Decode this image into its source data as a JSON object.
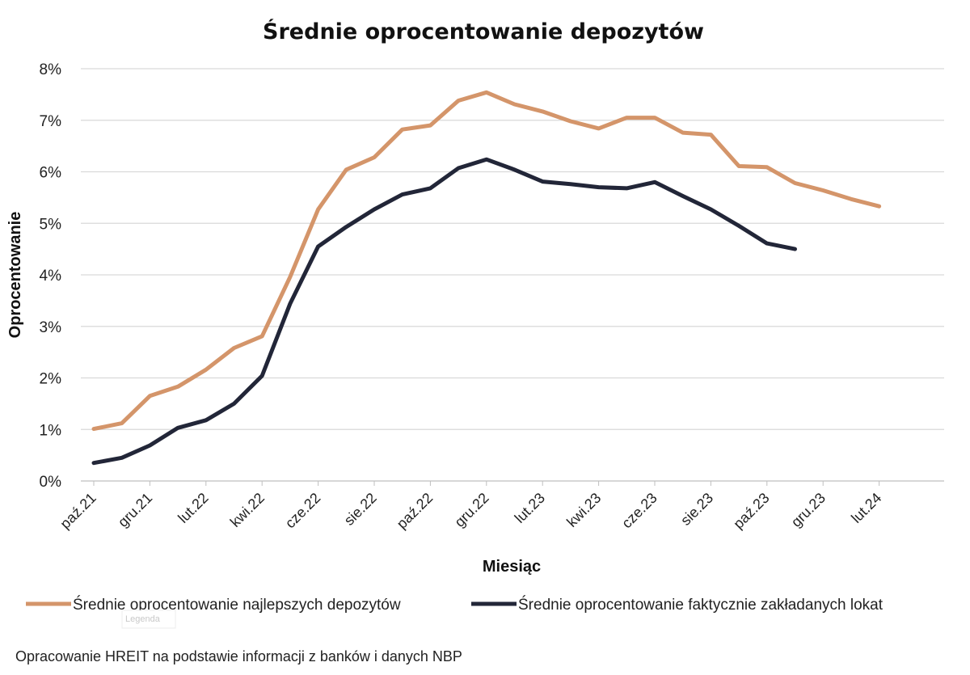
{
  "chart_data": {
    "type": "line",
    "title": "Średnie oprocentowanie depozytów",
    "xlabel": "Miesiąc",
    "ylabel": "Oprocentowanie",
    "ylim": [
      0,
      8
    ],
    "y_ticks": [
      "0%",
      "1%",
      "2%",
      "3%",
      "4%",
      "5%",
      "6%",
      "7%",
      "8%"
    ],
    "x_tick_labels": [
      "paź.21",
      "gru.21",
      "lut.22",
      "kwi.22",
      "cze.22",
      "sie.22",
      "paź.22",
      "gru.22",
      "lut.23",
      "kwi.23",
      "cze.23",
      "sie.23",
      "paź.23",
      "gru.23",
      "lut.24"
    ],
    "x": [
      "paź.21",
      "lis.21",
      "gru.21",
      "sty.22",
      "lut.22",
      "mar.22",
      "kwi.22",
      "maj.22",
      "cze.22",
      "lip.22",
      "sie.22",
      "wrz.22",
      "paź.22",
      "lis.22",
      "gru.22",
      "sty.23",
      "lut.23",
      "mar.23",
      "kwi.23",
      "maj.23",
      "cze.23",
      "lip.23",
      "sie.23",
      "wrz.23",
      "paź.23",
      "lis.23",
      "gru.23",
      "sty.24",
      "lut.24"
    ],
    "grid": true,
    "legend_position": "bottom",
    "series": [
      {
        "name": "Średnie oprocentowanie najlepszych depozytów",
        "color": "#D4956A",
        "values": [
          1.01,
          1.12,
          1.65,
          1.83,
          2.16,
          2.58,
          2.81,
          3.96,
          5.27,
          6.04,
          6.28,
          6.82,
          6.9,
          7.38,
          7.54,
          7.31,
          7.17,
          6.98,
          6.84,
          7.05,
          7.05,
          6.76,
          6.72,
          6.11,
          6.09,
          5.78,
          5.64,
          5.47,
          5.33
        ]
      },
      {
        "name": "Średnie oprocentowanie faktycznie zakładanych lokat",
        "color": "#222638",
        "values": [
          0.35,
          0.45,
          0.69,
          1.03,
          1.18,
          1.5,
          2.04,
          3.44,
          4.55,
          4.93,
          5.27,
          5.56,
          5.68,
          6.07,
          6.24,
          6.04,
          5.81,
          5.76,
          5.7,
          5.68,
          5.8,
          5.53,
          5.27,
          4.95,
          4.61,
          4.5,
          null,
          null,
          null
        ]
      }
    ],
    "annotations": [
      "Legenda"
    ]
  },
  "footnote": "Opracowanie HREIT na podstawie informacji z banków i danych NBP"
}
